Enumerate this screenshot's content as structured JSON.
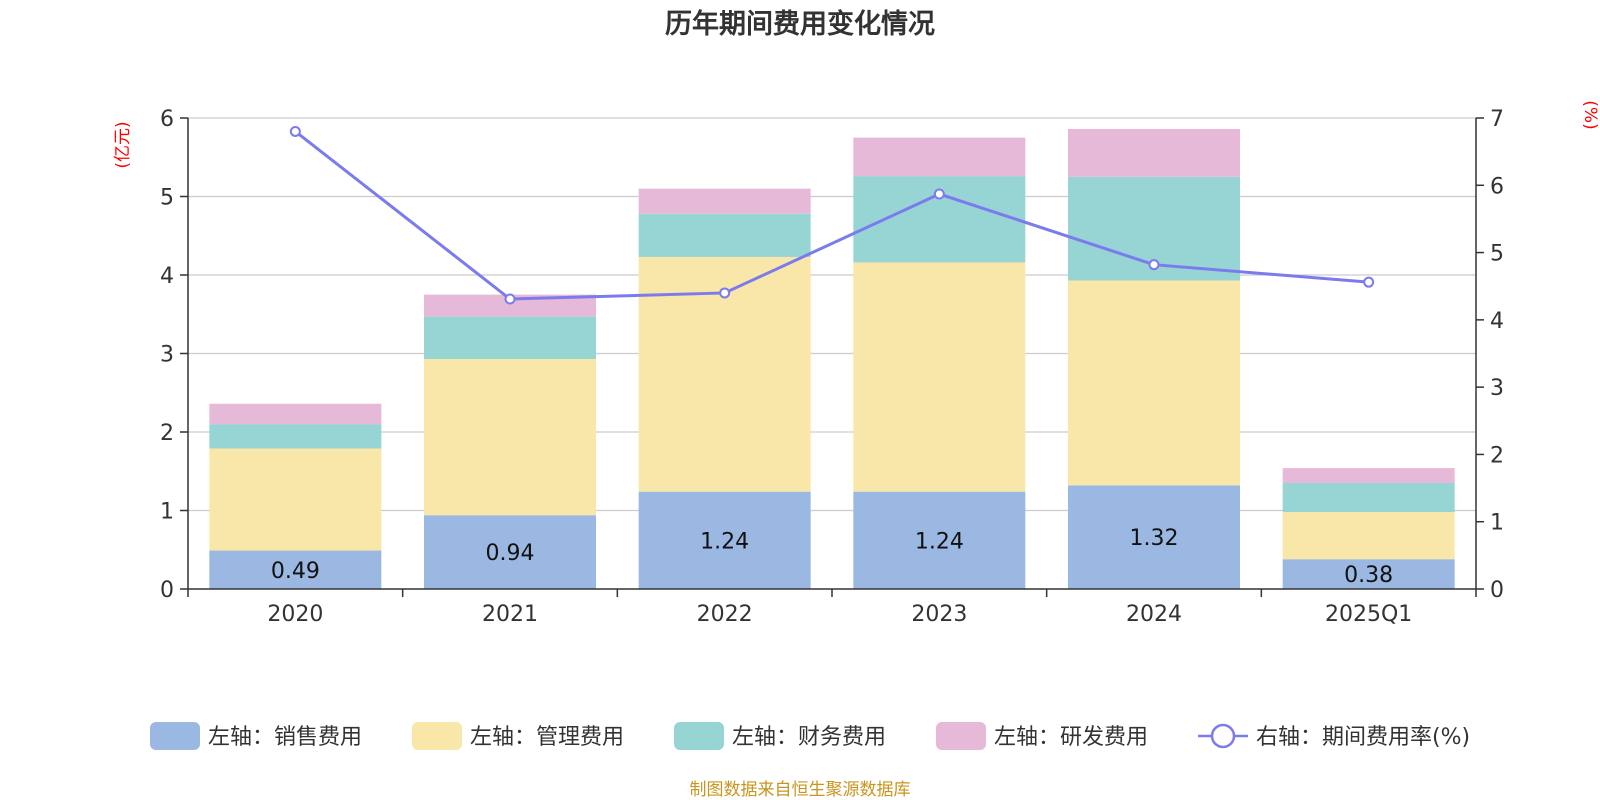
{
  "chart_data": {
    "type": "bar",
    "title": "历年期间费用变化情况",
    "categories": [
      "2020",
      "2021",
      "2022",
      "2023",
      "2024",
      "2025Q1"
    ],
    "left_axis": {
      "unit_label": "(亿元)",
      "ylim": [
        0,
        6
      ],
      "ticks": [
        "0",
        "1",
        "2",
        "3",
        "4",
        "5",
        "6"
      ]
    },
    "right_axis": {
      "unit_label": "(%)",
      "ylim": [
        0,
        7
      ],
      "ticks": [
        "0",
        "1",
        "2",
        "3",
        "4",
        "5",
        "6",
        "7"
      ]
    },
    "series": [
      {
        "name": "左轴：销售费用",
        "type": "bar",
        "stack": true,
        "axis": "left",
        "color": "#9bb8e2",
        "values": [
          0.49,
          0.94,
          1.24,
          1.24,
          1.32,
          0.38
        ],
        "labels": [
          "0.49",
          "0.94",
          "1.24",
          "1.24",
          "1.32",
          "0.38"
        ]
      },
      {
        "name": "左轴：管理费用",
        "type": "bar",
        "stack": true,
        "axis": "left",
        "color": "#f8e7a8",
        "values": [
          1.3,
          1.99,
          2.99,
          2.92,
          2.61,
          0.6
        ]
      },
      {
        "name": "左轴：财务费用",
        "type": "bar",
        "stack": true,
        "axis": "left",
        "color": "#97d4d4",
        "values": [
          0.31,
          0.54,
          0.55,
          1.1,
          1.32,
          0.37
        ]
      },
      {
        "name": "左轴：研发费用",
        "type": "bar",
        "stack": true,
        "axis": "left",
        "color": "#e6b9d8",
        "values": [
          0.26,
          0.28,
          0.32,
          0.49,
          0.61,
          0.19
        ]
      },
      {
        "name": "右轴：期间费用率(%)",
        "type": "line",
        "axis": "right",
        "color": "#7b7bee",
        "values": [
          6.8,
          4.31,
          4.4,
          5.87,
          4.82,
          4.56
        ]
      }
    ],
    "grid": true,
    "legend_position": "bottom"
  },
  "source_note": "制图数据来自恒生聚源数据库"
}
